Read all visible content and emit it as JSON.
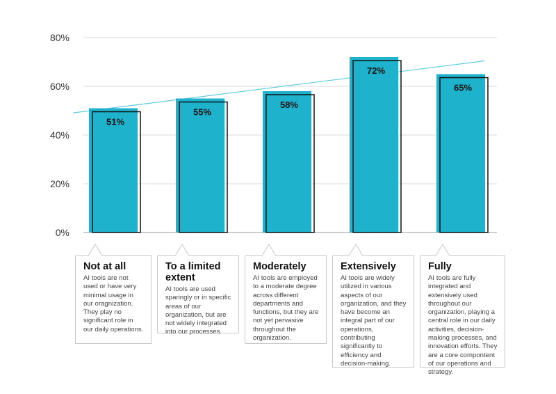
{
  "chart_data": {
    "type": "bar",
    "categories": [
      "Not at all",
      "To a limited extent",
      "Moderately",
      "Extensively",
      "Fully"
    ],
    "values": [
      51,
      55,
      58,
      72,
      65
    ],
    "data_labels": [
      "51%",
      "55%",
      "58%",
      "72%",
      "65%"
    ],
    "ylim": [
      0,
      80
    ],
    "yticks": [
      0,
      20,
      40,
      60,
      80
    ],
    "ytick_labels": [
      "0%",
      "20%",
      "40%",
      "60%",
      "80%"
    ],
    "grid": true,
    "trendline": true,
    "colors": {
      "bar": "#1fb2cd",
      "trend": "#5ccbe0",
      "grid": "#d9d9d9",
      "outline": "#111111"
    },
    "descriptions": [
      {
        "title": "Not at all",
        "text": "AI tools are not used or have very minimal usage in our oragnization. They play no significant role in our daily operations."
      },
      {
        "title": "To a limited extent",
        "text": "AI tools are used sparingly or in specific areas of our organization, but are not widely integrated into our processes."
      },
      {
        "title": "Moderately",
        "text": "AI tools are employed to a moderate degree across different departments and functions, but they are not yet pervasive throughout the organization."
      },
      {
        "title": "Extensively",
        "text": "AI tools are widely utilized in various aspects of our organization, and they have become an integral part of our operations, contributing significantly to efficiency and decision-making."
      },
      {
        "title": "Fully",
        "text": "AI tools are fully integrated and extensively used throughout our organization, playing a central role in our daily activities, decision-making processes, and innovation efforts. They are a core compontent of our operations and strategy."
      }
    ]
  }
}
